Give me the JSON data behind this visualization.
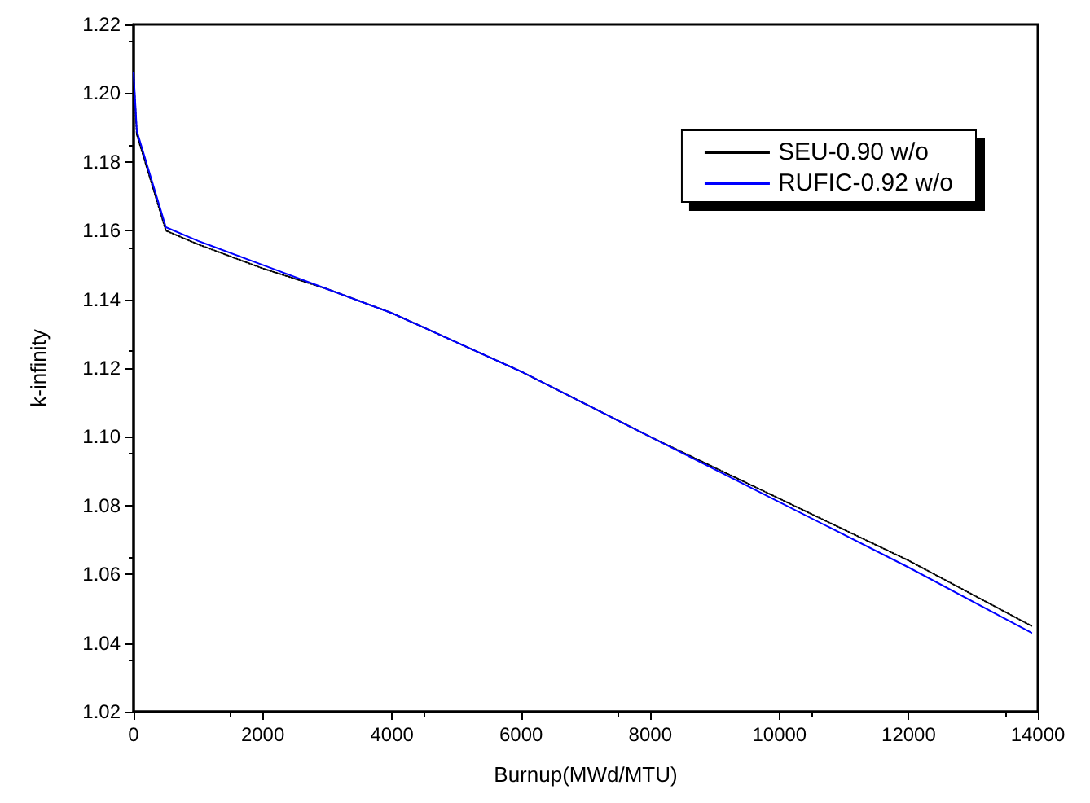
{
  "chart_data": {
    "type": "line",
    "xlabel": "Burnup(MWd/MTU)",
    "ylabel": "k-infinity",
    "xlim": [
      0,
      14000
    ],
    "ylim": [
      1.02,
      1.22
    ],
    "xticks": [
      0,
      2000,
      4000,
      6000,
      8000,
      10000,
      12000,
      14000
    ],
    "yticks": [
      1.02,
      1.04,
      1.06,
      1.08,
      {
        "value": 1.1,
        "label": "1.10"
      },
      1.12,
      1.14,
      1.16,
      1.18,
      {
        "value": 1.2,
        "label": "1.20"
      },
      1.22
    ],
    "legend": "top right",
    "grid": false,
    "series": [
      {
        "name": "SEU-0.90 w/o",
        "color": "#000000",
        "line_style": "dotted",
        "x": [
          0,
          50,
          500,
          1000,
          2000,
          3000,
          4000,
          6000,
          8000,
          10000,
          12000,
          13900
        ],
        "values": [
          1.205,
          1.188,
          1.16,
          1.156,
          1.149,
          1.143,
          1.136,
          1.119,
          1.1,
          1.082,
          1.064,
          1.045
        ]
      },
      {
        "name": "RUFIC-0.92 w/o",
        "color": "#0000ff",
        "line_style": "solid",
        "x": [
          0,
          50,
          500,
          1000,
          2000,
          3000,
          4000,
          6000,
          8000,
          10000,
          12000,
          13900
        ],
        "values": [
          1.206,
          1.189,
          1.161,
          1.157,
          1.15,
          1.143,
          1.136,
          1.119,
          1.1,
          1.081,
          1.062,
          1.043
        ]
      }
    ]
  }
}
